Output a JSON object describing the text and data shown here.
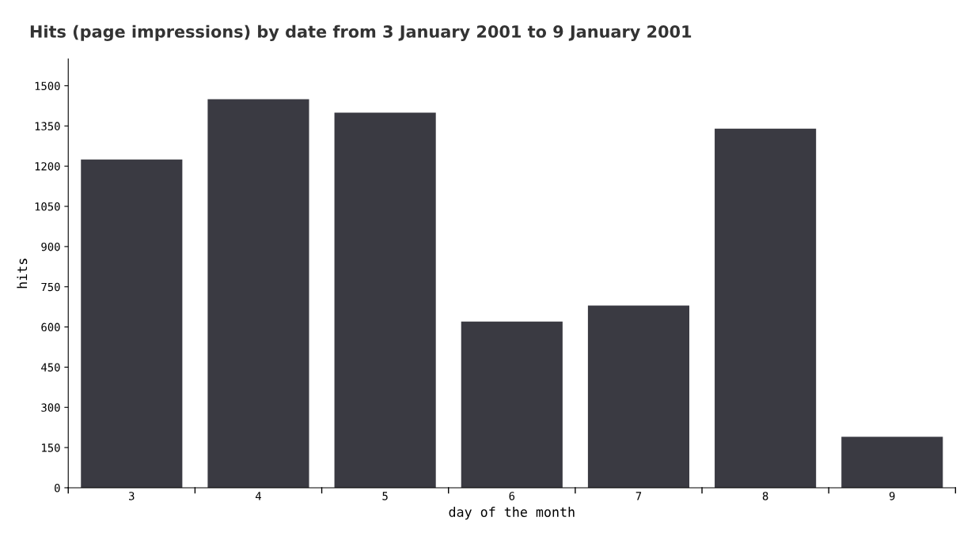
{
  "chart_data": {
    "type": "bar",
    "title": "Hits (page impressions) by date from 3 January 2001 to 9 January 2001",
    "xlabel": "day of the month",
    "ylabel": "hits",
    "categories": [
      "3",
      "4",
      "5",
      "6",
      "7",
      "8",
      "9"
    ],
    "values": [
      1225,
      1450,
      1400,
      620,
      680,
      1340,
      190
    ],
    "color": "#3a3a42",
    "ylim": [
      0,
      1600
    ],
    "yticks": [
      0,
      150,
      300,
      450,
      600,
      750,
      900,
      1050,
      1200,
      1350,
      1500
    ],
    "grid": false
  }
}
